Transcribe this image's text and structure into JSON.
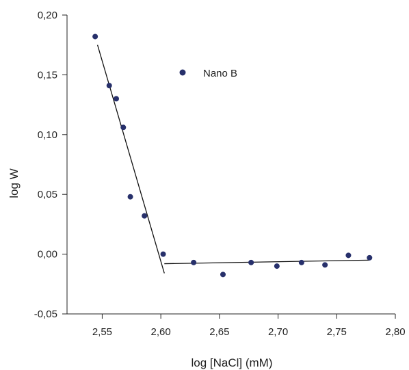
{
  "chart_data": {
    "type": "scatter",
    "xlabel": "log [NaCl] (mM)",
    "ylabel": "log W",
    "xlim": [
      2.52,
      2.8
    ],
    "ylim": [
      -0.05,
      0.2
    ],
    "x_ticks": [
      2.55,
      2.6,
      2.65,
      2.7,
      2.75,
      2.8
    ],
    "x_tick_labels": [
      "2,55",
      "2,60",
      "2,65",
      "2,70",
      "2,75",
      "2,80"
    ],
    "y_ticks": [
      -0.05,
      0.0,
      0.05,
      0.1,
      0.15,
      0.2
    ],
    "y_tick_labels": [
      "-0,05",
      "0,00",
      "0,05",
      "0,10",
      "0,15",
      "0,20"
    ],
    "grid": false,
    "legend_position": "top-center",
    "series": [
      {
        "name": "Nano B",
        "color": "#27306b",
        "x": [
          2.544,
          2.556,
          2.562,
          2.568,
          2.574,
          2.586,
          2.602,
          2.628,
          2.653,
          2.677,
          2.699,
          2.72,
          2.74,
          2.76,
          2.778
        ],
        "y": [
          0.182,
          0.141,
          0.13,
          0.106,
          0.048,
          0.032,
          0.0,
          -0.007,
          -0.017,
          -0.007,
          -0.01,
          -0.007,
          -0.009,
          -0.001,
          -0.003
        ]
      }
    ],
    "fit_lines": [
      {
        "x": [
          2.546,
          2.603
        ],
        "y": [
          0.175,
          -0.016
        ]
      },
      {
        "x": [
          2.603,
          2.778
        ],
        "y": [
          -0.008,
          -0.005
        ]
      }
    ]
  }
}
